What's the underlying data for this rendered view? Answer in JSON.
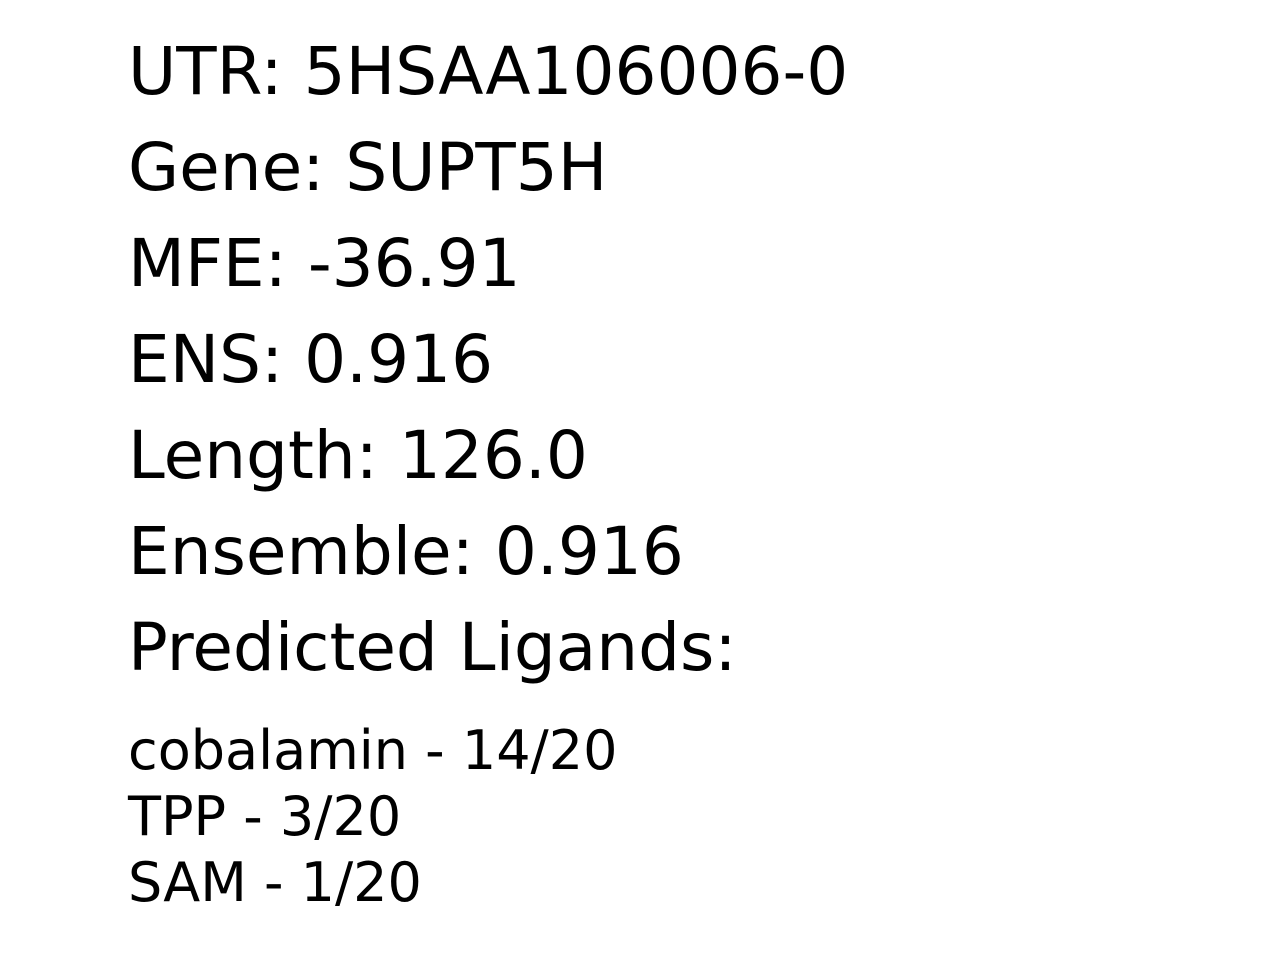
{
  "info": {
    "utr": "UTR: 5HSAA106006-0",
    "gene": "Gene: SUPT5H",
    "mfe": "MFE: -36.91",
    "ens": "ENS: 0.916",
    "length": "Length: 126.0",
    "ensemble": "Ensemble: 0.916",
    "ligands_heading": "Predicted Ligands:"
  },
  "ligands": [
    "cobalamin - 14/20",
    "TPP - 3/20",
    "SAM - 1/20"
  ]
}
